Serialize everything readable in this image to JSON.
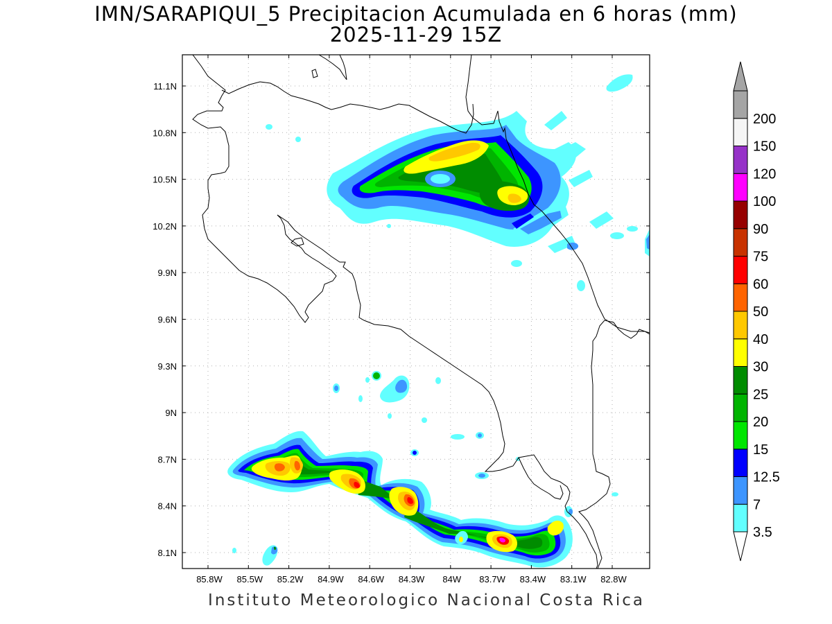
{
  "title_line1": "IMN/SARAPIQUI_5 Precipitacion Acumulada en 6 horas (mm)",
  "title_line2": "2025-11-29 15Z",
  "footer": "Instituto Meteorologico Nacional Costa Rica",
  "lat_ticks": [
    "11.1N",
    "10.8N",
    "10.5N",
    "10.2N",
    "9.9N",
    "9.6N",
    "9.3N",
    "9N",
    "8.7N",
    "8.4N",
    "8.1N"
  ],
  "lon_ticks": [
    "85.8W",
    "85.5W",
    "85.2W",
    "84.9W",
    "84.6W",
    "84.3W",
    "84W",
    "83.7W",
    "83.4W",
    "83.1W",
    "82.8W"
  ],
  "colorbar": {
    "levels": [
      "3.5",
      "7",
      "12.5",
      "15",
      "20",
      "25",
      "30",
      "40",
      "50",
      "60",
      "75",
      "90",
      "100",
      "120",
      "150",
      "200"
    ],
    "colors": [
      "#62ffff",
      "#3d95ff",
      "#0000ff",
      "#00e600",
      "#00b400",
      "#008c00",
      "#ffff00",
      "#ffc800",
      "#ff6400",
      "#ff0000",
      "#c83200",
      "#960000",
      "#ff00ff",
      "#9632c8",
      "#f5f5f5",
      "#a5a5a5"
    ]
  }
}
